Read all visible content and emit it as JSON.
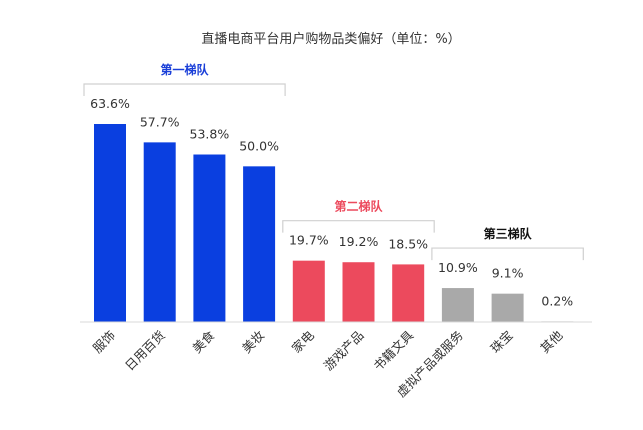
{
  "chart_data": {
    "type": "bar",
    "title": "直播电商平台用户购物品类偏好（单位：%）",
    "categories": [
      "服饰",
      "日用百货",
      "美食",
      "美妆",
      "家电",
      "游戏产品",
      "书籍文具",
      "虚拟产品或服务",
      "珠宝",
      "其他"
    ],
    "values": [
      63.6,
      57.7,
      53.8,
      50.0,
      19.7,
      19.2,
      18.5,
      10.9,
      9.1,
      0.2
    ],
    "value_labels": [
      "63.6%",
      "57.7%",
      "53.8%",
      "50.0%",
      "19.7%",
      "19.2%",
      "18.5%",
      "10.9%",
      "9.1%",
      "0.2%"
    ],
    "tiers": [
      {
        "label": "第一梯队",
        "first": 0,
        "last": 3,
        "color": "#0a3fe0"
      },
      {
        "label": "第二梯队",
        "first": 4,
        "last": 6,
        "color": "#ec4a5d"
      },
      {
        "label": "第三梯队",
        "first": 7,
        "last": 9,
        "color": "#a9a9a9"
      }
    ],
    "tier_label_colors": [
      "#1a3fd8",
      "#ec4a5d",
      "#111111"
    ],
    "ylim": [
      0,
      63.6
    ],
    "xlabel": "",
    "ylabel": "",
    "grid": false,
    "legend": "none"
  }
}
